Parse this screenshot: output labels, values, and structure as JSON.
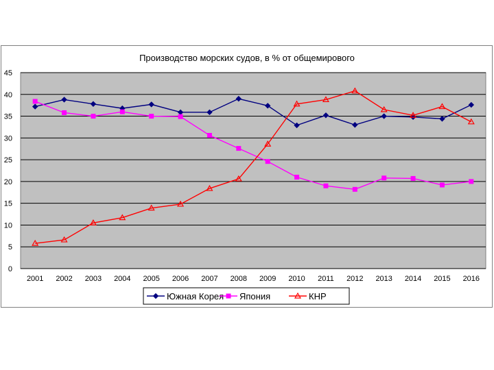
{
  "chart_data": {
    "type": "line",
    "title": "Производство морских судов, в % от общемирового",
    "xlabel": "",
    "ylabel": "",
    "ylim": [
      0,
      45
    ],
    "yticks": [
      0,
      5,
      10,
      15,
      20,
      25,
      30,
      35,
      40,
      45
    ],
    "grid": true,
    "legend_position": "bottom",
    "categories": [
      "2001",
      "2002",
      "2003",
      "2004",
      "2005",
      "2006",
      "2007",
      "2008",
      "2009",
      "2010",
      "2011",
      "2012",
      "2013",
      "2014",
      "2015",
      "2016"
    ],
    "series": [
      {
        "name": "Южная Корея",
        "color": "#000080",
        "marker": "diamond",
        "values": [
          37.2,
          38.8,
          37.8,
          36.8,
          37.7,
          35.9,
          35.9,
          39.0,
          37.4,
          32.9,
          35.2,
          33.0,
          35.0,
          34.8,
          34.4,
          37.6
        ]
      },
      {
        "name": "Япония",
        "color": "#ff00ff",
        "marker": "square",
        "values": [
          38.4,
          35.8,
          35.0,
          36.0,
          35.0,
          34.9,
          30.6,
          27.6,
          24.6,
          21.0,
          19.0,
          18.2,
          20.8,
          20.7,
          19.2,
          20.0
        ]
      },
      {
        "name": "КНР",
        "color": "#ff0000",
        "marker": "triangle",
        "values": [
          5.8,
          6.6,
          10.5,
          11.7,
          13.9,
          14.8,
          18.4,
          20.6,
          28.6,
          37.8,
          38.8,
          40.8,
          36.5,
          35.2,
          37.2,
          33.7
        ]
      }
    ]
  }
}
